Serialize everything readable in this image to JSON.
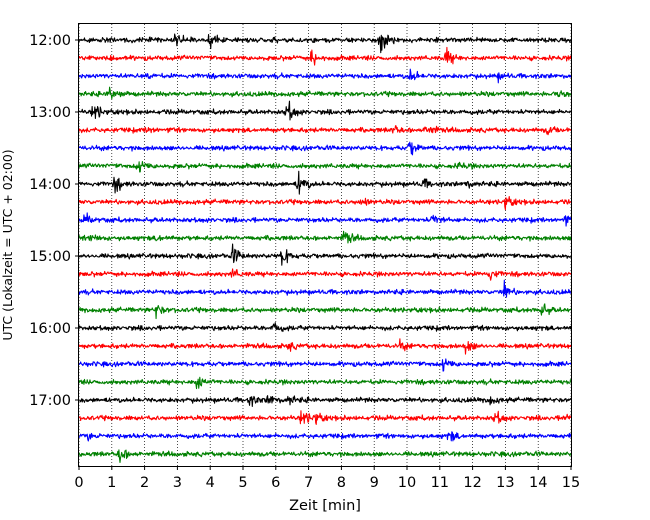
{
  "chart_data": {
    "type": "line",
    "title": "",
    "xlabel": "Zeit  [min]",
    "ylabel": "UTC (Lokalzeit = UTC + 02:00)",
    "xlim": [
      0,
      15
    ],
    "x_ticks": [
      "0",
      "1",
      "2",
      "3",
      "4",
      "5",
      "6",
      "7",
      "8",
      "9",
      "10",
      "11",
      "12",
      "13",
      "14",
      "15"
    ],
    "grid": "vertical-dotted",
    "y_tick_labels": [
      "12:00",
      "13:00",
      "14:00",
      "15:00",
      "16:00",
      "17:00"
    ],
    "trace_interval_minutes": 15,
    "trace_colors": [
      "#000000",
      "#ff0000",
      "#0000ff",
      "#008000"
    ],
    "traces": [
      {
        "start": "12:00",
        "color": "#000000",
        "events": [
          [
            2.95,
            0.9
          ],
          [
            4.0,
            1.5
          ],
          [
            9.2,
            2.2
          ]
        ]
      },
      {
        "start": "12:15",
        "color": "#ff0000",
        "events": [
          [
            7.1,
            1.0
          ],
          [
            11.2,
            1.3
          ]
        ]
      },
      {
        "start": "12:30",
        "color": "#0000ff",
        "events": [
          [
            2.0,
            0.5
          ],
          [
            10.1,
            0.9
          ],
          [
            12.8,
            0.4
          ]
        ]
      },
      {
        "start": "12:45",
        "color": "#008000",
        "events": [
          [
            0.95,
            1.3
          ],
          [
            14.6,
            0.6
          ]
        ]
      },
      {
        "start": "13:00",
        "color": "#000000",
        "events": [
          [
            0.45,
            1.4
          ],
          [
            6.35,
            1.6
          ]
        ]
      },
      {
        "start": "13:15",
        "color": "#ff0000",
        "events": [
          [
            2.1,
            0.4
          ],
          [
            9.6,
            0.6
          ],
          [
            10.6,
            1.0
          ],
          [
            14.3,
            0.5
          ]
        ]
      },
      {
        "start": "13:30",
        "color": "#0000ff",
        "events": [
          [
            10.1,
            1.1
          ]
        ]
      },
      {
        "start": "13:45",
        "color": "#008000",
        "events": [
          [
            1.8,
            1.1
          ],
          [
            11.6,
            0.4
          ]
        ]
      },
      {
        "start": "14:00",
        "color": "#000000",
        "events": [
          [
            1.1,
            1.0
          ],
          [
            6.7,
            1.8
          ],
          [
            10.5,
            0.6
          ],
          [
            11.8,
            0.5
          ]
        ]
      },
      {
        "start": "14:15",
        "color": "#ff0000",
        "events": [
          [
            8.6,
            0.6
          ],
          [
            13.0,
            0.9
          ]
        ]
      },
      {
        "start": "14:30",
        "color": "#0000ff",
        "events": [
          [
            0.2,
            0.7
          ],
          [
            10.8,
            0.8
          ],
          [
            14.8,
            0.6
          ]
        ]
      },
      {
        "start": "14:45",
        "color": "#008000",
        "events": [
          [
            0.4,
            0.6
          ],
          [
            2.4,
            0.5
          ],
          [
            8.1,
            1.1
          ]
        ]
      },
      {
        "start": "15:00",
        "color": "#000000",
        "events": [
          [
            4.7,
            1.2
          ],
          [
            6.2,
            1.3
          ]
        ]
      },
      {
        "start": "15:15",
        "color": "#ff0000",
        "events": [
          [
            4.7,
            0.6
          ],
          [
            12.5,
            0.9
          ]
        ]
      },
      {
        "start": "15:30",
        "color": "#0000ff",
        "events": [
          [
            12.95,
            1.3
          ]
        ]
      },
      {
        "start": "15:45",
        "color": "#008000",
        "events": [
          [
            2.35,
            1.0
          ],
          [
            14.1,
            0.9
          ]
        ]
      },
      {
        "start": "16:00",
        "color": "#000000",
        "events": [
          [
            5.95,
            0.8
          ]
        ]
      },
      {
        "start": "16:15",
        "color": "#ff0000",
        "events": [
          [
            6.4,
            0.5
          ],
          [
            9.8,
            0.6
          ],
          [
            11.8,
            1.0
          ]
        ]
      },
      {
        "start": "16:30",
        "color": "#0000ff",
        "events": [
          [
            11.1,
            1.0
          ]
        ]
      },
      {
        "start": "16:45",
        "color": "#008000",
        "events": [
          [
            3.6,
            1.1
          ]
        ]
      },
      {
        "start": "17:00",
        "color": "#000000",
        "events": [
          [
            5.2,
            0.8
          ],
          [
            5.8,
            0.8
          ],
          [
            6.4,
            0.6
          ],
          [
            12.5,
            0.6
          ]
        ]
      },
      {
        "start": "17:15",
        "color": "#ff0000",
        "events": [
          [
            6.8,
            1.2
          ],
          [
            7.2,
            0.8
          ],
          [
            12.7,
            0.9
          ],
          [
            14.8,
            0.5
          ]
        ]
      },
      {
        "start": "17:30",
        "color": "#0000ff",
        "events": [
          [
            0.3,
            0.4
          ],
          [
            11.3,
            0.8
          ]
        ]
      },
      {
        "start": "17:45",
        "color": "#008000",
        "events": [
          [
            1.25,
            1.2
          ]
        ]
      }
    ]
  }
}
